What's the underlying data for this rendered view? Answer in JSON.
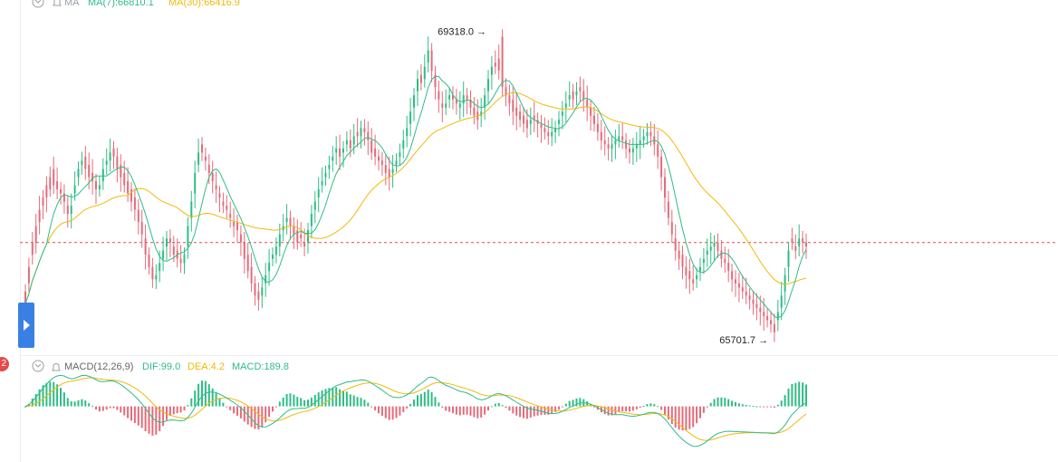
{
  "chart_data": {
    "type": "candlestick",
    "main": {
      "legend": {
        "label": "MA",
        "ma7": "MA(7):66810.1",
        "ma30": "MA(30):66416.9"
      },
      "colors": {
        "up": "#2ebd85",
        "down": "#e56b7a",
        "ma7": "#2ebd85",
        "ma30": "#f0b90b",
        "price_line": "#e34a4a"
      },
      "ylim": [
        65500,
        69600
      ],
      "current_price": 66800,
      "high_label": "69318.0 →",
      "low_label": "65701.7 →",
      "high_value": 69318.0,
      "low_value": 65701.7,
      "high_index": 131,
      "low_index": 210,
      "points": [
        [
          66200,
          66050
        ],
        [
          66500,
          66300
        ],
        [
          66800,
          66650
        ],
        [
          67000,
          66800
        ],
        [
          67200,
          67050
        ],
        [
          67350,
          67250
        ],
        [
          67500,
          67350
        ],
        [
          67600,
          67450
        ],
        [
          67700,
          67500
        ],
        [
          67550,
          67450
        ],
        [
          67450,
          67400
        ],
        [
          67400,
          67300
        ],
        [
          67250,
          67150
        ],
        [
          67150,
          67250
        ],
        [
          67400,
          67500
        ],
        [
          67600,
          67700
        ],
        [
          67750,
          67800
        ],
        [
          67850,
          67700
        ],
        [
          67750,
          67600
        ],
        [
          67650,
          67550
        ],
        [
          67550,
          67450
        ],
        [
          67450,
          67500
        ],
        [
          67550,
          67700
        ],
        [
          67750,
          67800
        ],
        [
          67800,
          67900
        ],
        [
          67950,
          67850
        ],
        [
          67850,
          67700
        ],
        [
          67750,
          67600
        ],
        [
          67650,
          67500
        ],
        [
          67550,
          67400
        ],
        [
          67450,
          67300
        ],
        [
          67350,
          67200
        ],
        [
          67200,
          67050
        ],
        [
          67050,
          66900
        ],
        [
          66850,
          66650
        ],
        [
          66650,
          66500
        ],
        [
          66500,
          66350
        ],
        [
          66350,
          66400
        ],
        [
          66450,
          66550
        ],
        [
          66600,
          66700
        ],
        [
          66750,
          66850
        ],
        [
          66850,
          66800
        ],
        [
          66750,
          66650
        ],
        [
          66700,
          66600
        ],
        [
          66600,
          66550
        ],
        [
          66550,
          66650
        ],
        [
          66750,
          67000
        ],
        [
          67100,
          67300
        ],
        [
          67400,
          67650
        ],
        [
          67750,
          67900
        ],
        [
          68000,
          67900
        ],
        [
          67850,
          67800
        ],
        [
          67750,
          67650
        ],
        [
          67650,
          67550
        ],
        [
          67500,
          67450
        ],
        [
          67400,
          67350
        ],
        [
          67300,
          67250
        ],
        [
          67250,
          67200
        ],
        [
          67150,
          67100
        ],
        [
          67050,
          67000
        ],
        [
          67050,
          66950
        ],
        [
          66900,
          66800
        ],
        [
          66800,
          66600
        ],
        [
          66650,
          66450
        ],
        [
          66500,
          66300
        ],
        [
          66300,
          66150
        ],
        [
          66200,
          66100
        ],
        [
          66150,
          66250
        ],
        [
          66300,
          66400
        ],
        [
          66450,
          66550
        ],
        [
          66600,
          66650
        ],
        [
          66650,
          66750
        ],
        [
          66750,
          66900
        ],
        [
          66950,
          67000
        ],
        [
          67050,
          67100
        ],
        [
          67100,
          67000
        ],
        [
          67000,
          66900
        ],
        [
          66950,
          66800
        ],
        [
          66900,
          66850
        ],
        [
          66800,
          66750
        ],
        [
          66800,
          66950
        ],
        [
          67000,
          67150
        ],
        [
          67200,
          67300
        ],
        [
          67350,
          67450
        ],
        [
          67500,
          67550
        ],
        [
          67600,
          67650
        ],
        [
          67700,
          67750
        ],
        [
          67800,
          67850
        ],
        [
          67900,
          67950
        ],
        [
          67950,
          67850
        ],
        [
          67900,
          67950
        ],
        [
          68000,
          68050
        ],
        [
          68050,
          67950
        ],
        [
          68000,
          68100
        ],
        [
          68150,
          68100
        ],
        [
          68100,
          68200
        ],
        [
          68200,
          68150
        ],
        [
          68150,
          68050
        ],
        [
          68050,
          67900
        ],
        [
          67950,
          67850
        ],
        [
          67850,
          67800
        ],
        [
          67800,
          67750
        ],
        [
          67750,
          67650
        ],
        [
          67700,
          67600
        ],
        [
          67650,
          67700
        ],
        [
          67750,
          67800
        ],
        [
          67850,
          67900
        ],
        [
          67950,
          68050
        ],
        [
          68100,
          68200
        ],
        [
          68250,
          68400
        ],
        [
          68450,
          68600
        ],
        [
          68650,
          68800
        ],
        [
          68850,
          68750
        ],
        [
          68800,
          68950
        ],
        [
          69000,
          69150
        ],
        [
          69150,
          68900
        ],
        [
          68850,
          68700
        ],
        [
          68650,
          68550
        ],
        [
          68500,
          68450
        ],
        [
          68450,
          68500
        ],
        [
          68550,
          68600
        ],
        [
          68600,
          68550
        ],
        [
          68550,
          68500
        ],
        [
          68450,
          68500
        ],
        [
          68500,
          68600
        ],
        [
          68600,
          68550
        ],
        [
          68550,
          68450
        ],
        [
          68450,
          68350
        ],
        [
          68400,
          68300
        ],
        [
          68350,
          68400
        ],
        [
          68450,
          68600
        ],
        [
          68650,
          68800
        ],
        [
          68850,
          68950
        ],
        [
          69000,
          68950
        ],
        [
          69050,
          68900
        ],
        [
          69318,
          68700
        ],
        [
          68700,
          68600
        ],
        [
          68600,
          68500
        ],
        [
          68550,
          68400
        ],
        [
          68450,
          68350
        ],
        [
          68400,
          68300
        ],
        [
          68350,
          68250
        ],
        [
          68300,
          68200
        ],
        [
          68250,
          68300
        ],
        [
          68350,
          68300
        ],
        [
          68300,
          68250
        ],
        [
          68250,
          68200
        ],
        [
          68200,
          68150
        ],
        [
          68150,
          68100
        ],
        [
          68100,
          68150
        ],
        [
          68150,
          68200
        ],
        [
          68250,
          68300
        ],
        [
          68350,
          68400
        ],
        [
          68450,
          68500
        ],
        [
          68550,
          68600
        ],
        [
          68650,
          68550
        ],
        [
          68600,
          68650
        ],
        [
          68700,
          68650
        ],
        [
          68650,
          68550
        ],
        [
          68550,
          68450
        ],
        [
          68450,
          68350
        ],
        [
          68350,
          68250
        ],
        [
          68250,
          68150
        ],
        [
          68150,
          68050
        ],
        [
          68050,
          68000
        ],
        [
          68000,
          67950
        ],
        [
          67950,
          68000
        ],
        [
          68000,
          68050
        ],
        [
          68050,
          68100
        ],
        [
          68100,
          68050
        ],
        [
          68050,
          67950
        ],
        [
          67950,
          67900
        ],
        [
          67900,
          67950
        ],
        [
          67950,
          68000
        ],
        [
          68000,
          68050
        ],
        [
          68050,
          68100
        ],
        [
          68100,
          68150
        ],
        [
          68150,
          68100
        ],
        [
          68100,
          68000
        ],
        [
          68000,
          67850
        ],
        [
          67850,
          67600
        ],
        [
          67600,
          67350
        ],
        [
          67300,
          67100
        ],
        [
          67050,
          66900
        ],
        [
          66850,
          66700
        ],
        [
          66700,
          66600
        ],
        [
          66650,
          66500
        ],
        [
          66500,
          66400
        ],
        [
          66450,
          66350
        ],
        [
          66350,
          66300
        ],
        [
          66350,
          66400
        ],
        [
          66450,
          66500
        ],
        [
          66550,
          66600
        ],
        [
          66650,
          66700
        ],
        [
          66700,
          66750
        ],
        [
          66750,
          66800
        ],
        [
          66800,
          66700
        ],
        [
          66700,
          66600
        ],
        [
          66600,
          66550
        ],
        [
          66550,
          66450
        ],
        [
          66450,
          66350
        ],
        [
          66350,
          66300
        ],
        [
          66300,
          66250
        ],
        [
          66250,
          66200
        ],
        [
          66200,
          66150
        ],
        [
          66150,
          66100
        ],
        [
          66100,
          66050
        ],
        [
          66050,
          66000
        ],
        [
          66000,
          65950
        ],
        [
          65950,
          65900
        ],
        [
          65900,
          65850
        ],
        [
          65850,
          65800
        ],
        [
          65800,
          65701.7
        ],
        [
          65850,
          65950
        ],
        [
          66000,
          66150
        ],
        [
          66200,
          66400
        ],
        [
          66500,
          66700
        ],
        [
          66850,
          66800
        ],
        [
          66750,
          66700
        ],
        [
          66750,
          66850
        ],
        [
          66850,
          66800
        ],
        [
          66800,
          66750
        ]
      ]
    },
    "macd": {
      "legend": {
        "label": "MACD(12,26,9)",
        "dif": "DIF:99.0",
        "dea": "DEA:4.2",
        "macd": "MACD:189.8"
      },
      "colors": {
        "up": "#2ebd85",
        "down": "#e56b7a",
        "dif": "#2ebd85",
        "dea": "#f0b90b"
      },
      "ylim": [
        -650,
        400
      ],
      "histogram_pattern": [
        1,
        1,
        1,
        1,
        1,
        0.8,
        0.6,
        0.4,
        0.2,
        -0.1,
        -0.3,
        -0.5,
        -0.6,
        -0.5,
        -0.3,
        0.1,
        0.4,
        0.6,
        0.3,
        -0.2,
        -0.5,
        -0.6,
        -0.4,
        0.2,
        0.6,
        0.9,
        0.5,
        0.2,
        -0.3,
        -0.6,
        -0.9,
        -0.7,
        -0.4,
        0.3,
        0.6,
        0.8,
        0.4,
        0.1,
        -0.1,
        -0.2,
        -0.3,
        -0.4,
        -0.5,
        -0.3,
        0.3,
        0.6,
        0.7,
        0.4,
        0.1,
        -0.1,
        -0.2,
        -0.1,
        0.1,
        0.2,
        0.3,
        -0.4,
        -0.8,
        -1.0,
        -0.7,
        -0.3,
        -0.1,
        0.2,
        0.6,
        0.8,
        0.5,
        0.1,
        0.3,
        0.6,
        0.9
      ]
    },
    "icons": {
      "collapse": "chevron-down-icon",
      "alert": "bell-icon",
      "expand": "expand-panel-icon"
    },
    "badge_count": "2"
  }
}
